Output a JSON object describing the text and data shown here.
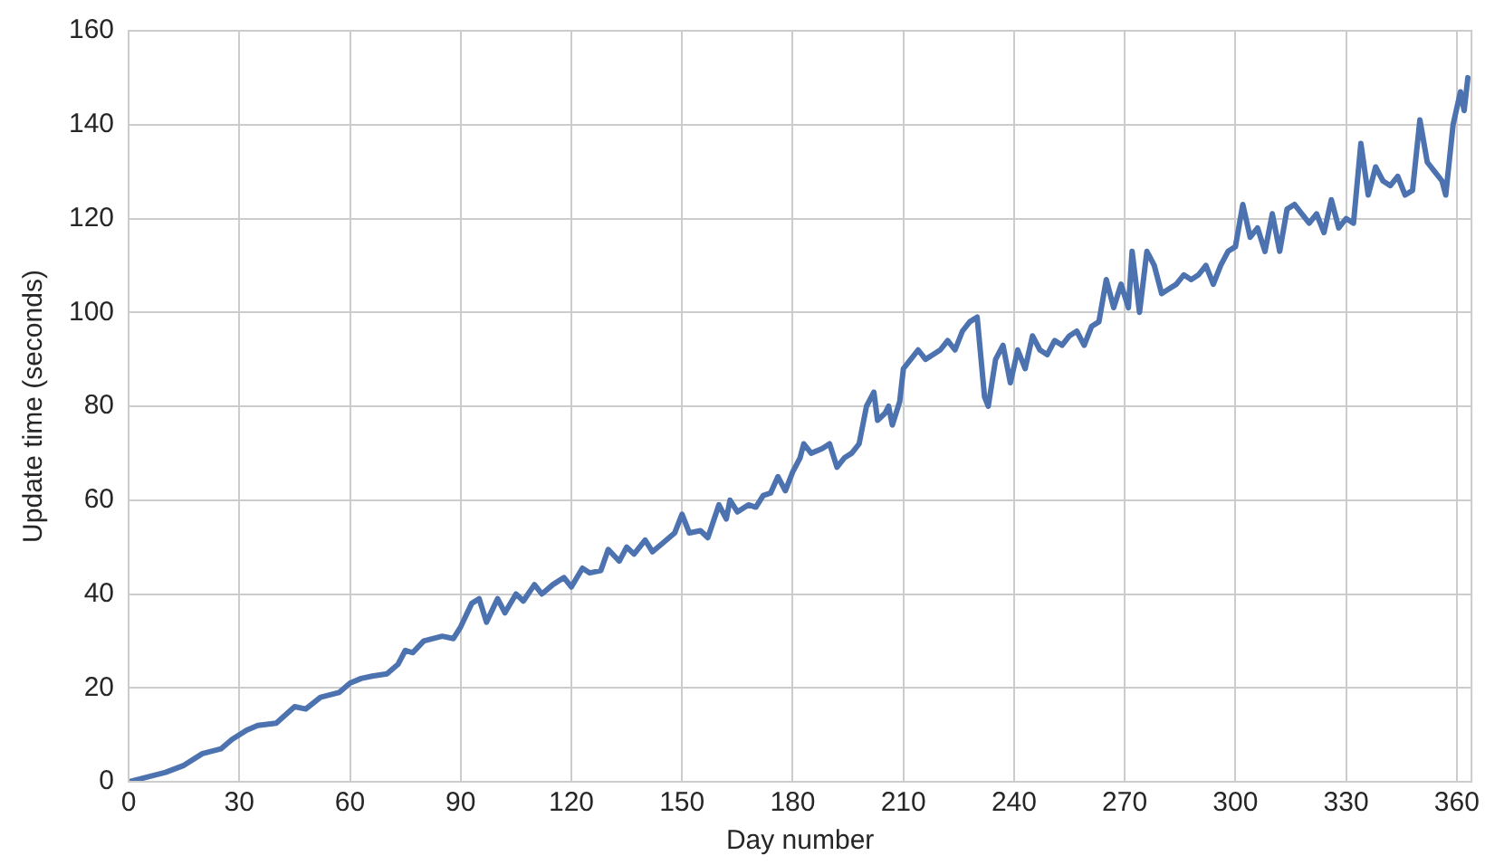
{
  "chart_data": {
    "type": "line",
    "xlabel": "Day number",
    "ylabel": "Update time (seconds)",
    "x": [
      0,
      10,
      15,
      20,
      25,
      28,
      32,
      35,
      40,
      45,
      48,
      52,
      57,
      60,
      63,
      66,
      70,
      73,
      75,
      77,
      80,
      85,
      88,
      90,
      93,
      95,
      97,
      100,
      102,
      105,
      107,
      110,
      112,
      115,
      118,
      120,
      123,
      125,
      128,
      130,
      133,
      135,
      137,
      140,
      142,
      145,
      148,
      150,
      152,
      155,
      157,
      160,
      162,
      163,
      165,
      168,
      170,
      172,
      174,
      176,
      178,
      180,
      182,
      183,
      185,
      188,
      190,
      192,
      194,
      196,
      198,
      200,
      202,
      203,
      205,
      206,
      207,
      209,
      210,
      212,
      214,
      216,
      218,
      220,
      222,
      224,
      226,
      228,
      230,
      232,
      233,
      235,
      237,
      239,
      241,
      243,
      245,
      247,
      249,
      251,
      253,
      255,
      257,
      259,
      261,
      263,
      265,
      267,
      269,
      271,
      272,
      274,
      276,
      278,
      280,
      282,
      284,
      286,
      288,
      290,
      292,
      294,
      296,
      298,
      300,
      302,
      304,
      306,
      308,
      310,
      312,
      314,
      316,
      318,
      320,
      322,
      324,
      326,
      328,
      330,
      332,
      334,
      336,
      338,
      340,
      342,
      344,
      346,
      348,
      350,
      352,
      354,
      356,
      357,
      359,
      361,
      362,
      363
    ],
    "series": [
      {
        "color": "#4c72b0",
        "values": [
          0,
          2,
          3.5,
          6,
          7,
          9,
          11,
          12,
          12.5,
          16,
          15.5,
          18,
          19,
          21,
          22,
          22.5,
          23,
          25,
          28,
          27.5,
          30,
          31,
          30.5,
          33,
          38,
          39,
          34,
          39,
          36,
          40,
          38.5,
          42,
          40,
          42,
          43.5,
          41.5,
          45.5,
          44.5,
          45,
          49.5,
          47,
          50,
          48.5,
          51.5,
          49,
          51,
          53,
          57,
          53,
          53.5,
          52,
          59,
          56,
          60,
          57.5,
          59,
          58.5,
          61,
          61.5,
          65,
          62,
          66,
          69,
          72,
          70,
          71,
          72,
          67,
          69,
          70,
          72,
          80,
          83,
          77,
          78.5,
          80,
          76,
          81,
          88,
          90,
          92,
          90,
          91,
          92,
          94,
          92,
          96,
          98,
          99,
          82,
          80,
          90,
          93,
          85,
          92,
          88,
          95,
          92,
          91,
          94,
          93,
          95,
          96,
          93,
          97,
          98,
          107,
          101,
          106,
          101,
          113,
          100,
          113,
          110,
          104,
          105,
          106,
          108,
          107,
          108,
          110,
          106,
          110,
          113,
          114,
          123,
          116,
          118,
          113,
          121,
          113,
          122,
          123,
          121,
          119,
          121,
          117,
          124,
          118,
          120,
          119,
          136,
          125,
          131,
          128,
          127,
          129,
          125,
          126,
          141,
          132,
          130,
          128,
          125,
          140,
          147,
          143,
          150
        ]
      }
    ],
    "xlim": [
      0,
      364
    ],
    "xticks": [
      0,
      30,
      60,
      90,
      120,
      150,
      180,
      210,
      240,
      270,
      300,
      330,
      360
    ],
    "ylim": [
      0,
      160
    ],
    "yticks": [
      0,
      20,
      40,
      60,
      80,
      100,
      120,
      140,
      160
    ],
    "grid": true,
    "legend": false,
    "marker": "none",
    "line_style": "solid"
  }
}
